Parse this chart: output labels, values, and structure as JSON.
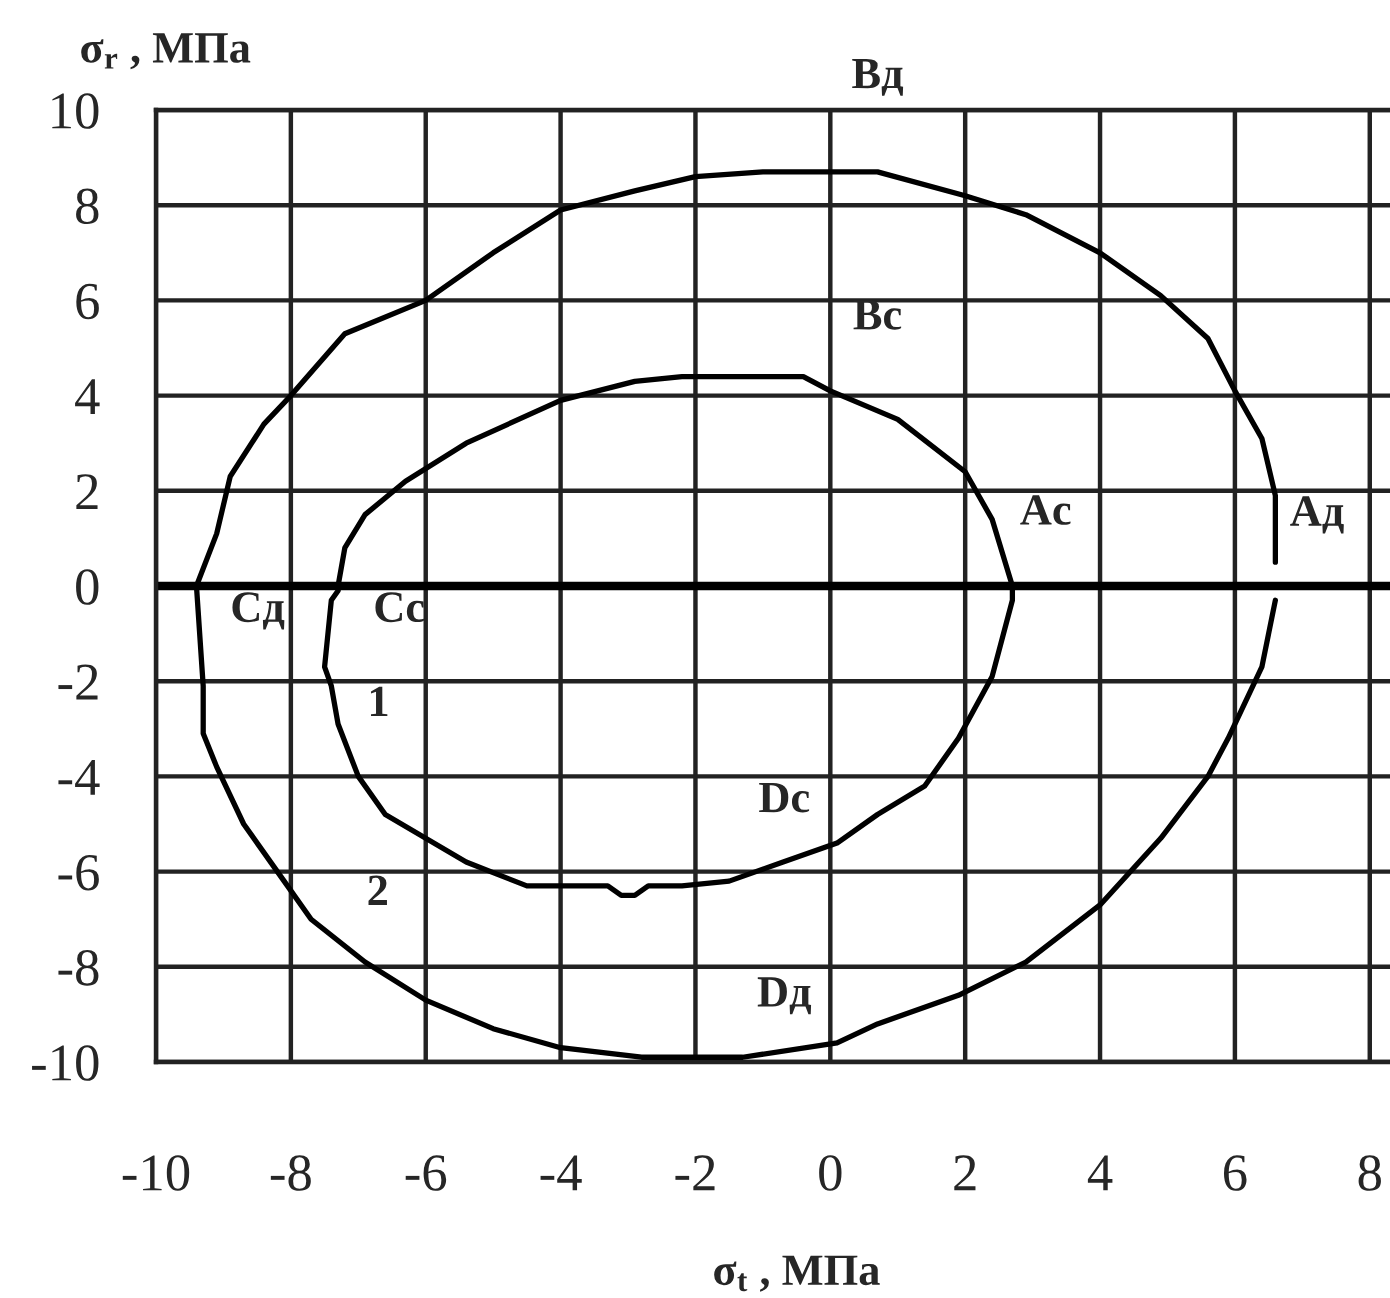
{
  "chart_data": {
    "type": "line",
    "xlabel": "σ$_{t}$ , МПа",
    "ylabel": "σ$_{r}$ , МПа",
    "xlim": [
      -10,
      8.3
    ],
    "ylim": [
      -10,
      10
    ],
    "xticks": [
      -10,
      -8,
      -6,
      -4,
      -2,
      0,
      2,
      4,
      6,
      8
    ],
    "yticks": [
      -10,
      -8,
      -6,
      -4,
      -2,
      0,
      2,
      4,
      6,
      8,
      10
    ],
    "grid": true,
    "ref_lines": [
      {
        "axis": "y",
        "value": 0,
        "color": "#000000"
      }
    ],
    "series": [
      {
        "color": "#000000",
        "x": [
          -7.3,
          -7.2,
          -6.9,
          -6.3,
          -5.4,
          -4.0,
          -2.9,
          -2.2,
          -0.4,
          0.0,
          1.0,
          2.0,
          2.4,
          2.7,
          2.7,
          2.4,
          1.9,
          1.4,
          0.7,
          0.1,
          -0.7,
          -1.5,
          -2.2,
          -2.7,
          -2.9,
          -3.1,
          -3.3,
          -4.5,
          -5.4,
          -6.0,
          -6.6,
          -7.0,
          -7.3,
          -7.4,
          -7.5,
          -7.4,
          -7.3
        ],
        "values": [
          0.0,
          0.8,
          1.5,
          2.2,
          3.0,
          3.9,
          4.3,
          4.4,
          4.4,
          4.1,
          3.5,
          2.4,
          1.4,
          0.0,
          -0.3,
          -1.9,
          -3.2,
          -4.2,
          -4.8,
          -5.4,
          -5.8,
          -6.2,
          -6.3,
          -6.3,
          -6.5,
          -6.5,
          -6.3,
          -6.3,
          -5.8,
          -5.3,
          -4.8,
          -4.0,
          -2.9,
          -2.1,
          -1.7,
          -0.3,
          -0.1
        ]
      },
      {
        "color": "#000000",
        "x": [
          6.6,
          6.4,
          5.9,
          5.6,
          4.9,
          4.0,
          2.9,
          1.9,
          0.7,
          0.1,
          -1.3,
          -2.0,
          -2.8,
          -3.4,
          -4.0,
          -5.0,
          -6.0,
          -6.9,
          -7.7,
          -8.1,
          -8.7,
          -9.1,
          -9.3,
          -9.3,
          -9.4,
          -9.1,
          -8.9,
          -8.4,
          -8.0,
          -7.2,
          -6.0,
          -5.0,
          -4.0,
          -2.9,
          -2.0,
          -1.0,
          0.0,
          0.7,
          2.0,
          2.9,
          4.0,
          4.9,
          5.6,
          6.0,
          6.4,
          6.6,
          6.6
        ],
        "values": [
          -0.3,
          -1.7,
          -3.2,
          -4.0,
          -5.3,
          -6.7,
          -7.9,
          -8.6,
          -9.2,
          -9.6,
          -9.9,
          -9.9,
          -9.9,
          -9.8,
          -9.7,
          -9.3,
          -8.7,
          -7.9,
          -7.0,
          -6.2,
          -5.0,
          -3.8,
          -3.1,
          -2.1,
          0.0,
          1.1,
          2.3,
          3.4,
          4.0,
          5.3,
          6.0,
          7.0,
          7.9,
          8.3,
          8.6,
          8.7,
          8.7,
          8.7,
          8.2,
          7.8,
          7.0,
          6.1,
          5.2,
          4.1,
          3.1,
          1.9,
          0.5
        ]
      }
    ],
    "annotations": [
      {
        "text": "Bд",
        "x": 0.0,
        "y": 8.7
      },
      {
        "text": "Bс",
        "x": 0.0,
        "y": 4.1
      },
      {
        "text": "Aс",
        "x": 2.7,
        "y": 0.0
      },
      {
        "text": "Aд",
        "x": 6.6,
        "y": 0.5
      },
      {
        "text": "Cд",
        "x": -9.4,
        "y": 0.0
      },
      {
        "text": "Cс",
        "x": -7.3,
        "y": 0.0
      },
      {
        "text": "1",
        "x": -7.4,
        "y": -2.1
      },
      {
        "text": "2",
        "x": -7.7,
        "y": -7.0
      },
      {
        "text": "Dс",
        "x": 0.1,
        "y": -5.4
      },
      {
        "text": "Dд",
        "x": 0.1,
        "y": -9.6
      }
    ]
  }
}
